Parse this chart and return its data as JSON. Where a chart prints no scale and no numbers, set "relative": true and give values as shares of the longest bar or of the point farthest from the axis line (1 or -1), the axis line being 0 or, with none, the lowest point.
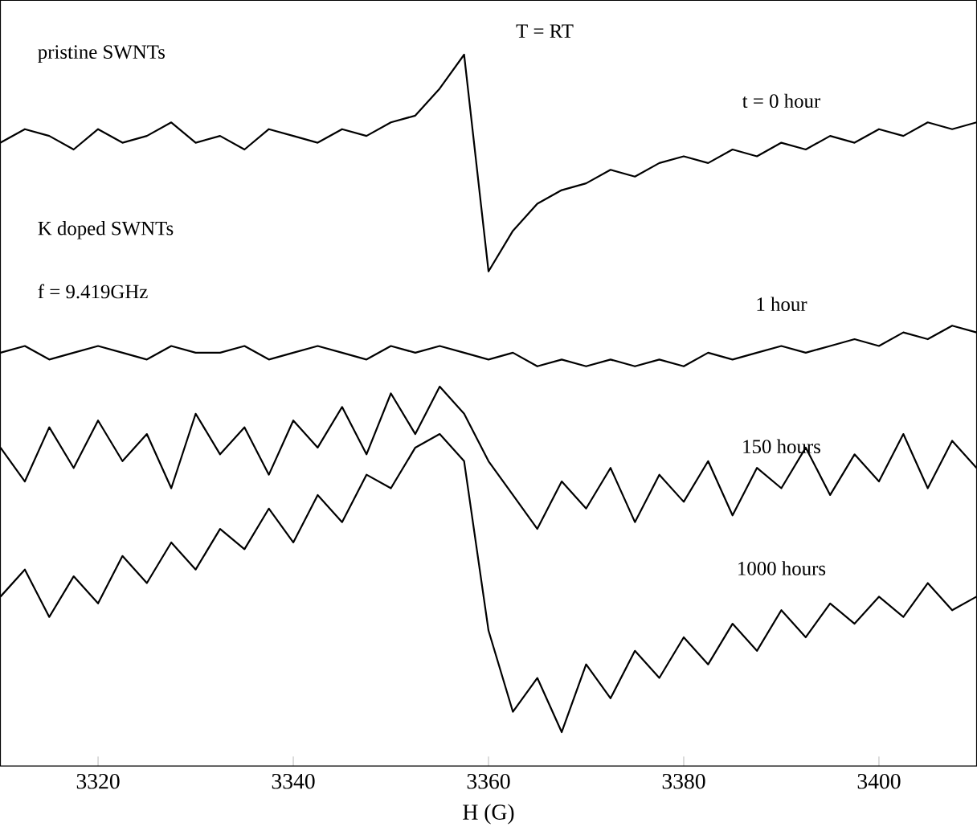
{
  "chart_data": {
    "type": "line",
    "xlabel": "H (G)",
    "relative": true,
    "xlim": [
      3310,
      3410
    ],
    "xticks": [
      3320,
      3340,
      3360,
      3380,
      3400
    ],
    "marker": "none",
    "line_style": "solid",
    "x": [
      3310,
      3312.5,
      3315,
      3317.5,
      3320,
      3322.5,
      3325,
      3327.5,
      3330,
      3332.5,
      3335,
      3337.5,
      3340,
      3342.5,
      3345,
      3347.5,
      3350,
      3352.5,
      3355,
      3357.5,
      3360,
      3362.5,
      3365,
      3367.5,
      3370,
      3372.5,
      3375,
      3377.5,
      3380,
      3382.5,
      3385,
      3387.5,
      3390,
      3392.5,
      3395,
      3397.5,
      3400,
      3402.5,
      3405,
      3407.5,
      3410
    ],
    "series": [
      {
        "name": "t = 0 hour",
        "color": "#000000",
        "values": [
          0.87,
          0.89,
          0.88,
          0.86,
          0.89,
          0.87,
          0.88,
          0.9,
          0.87,
          0.88,
          0.86,
          0.89,
          0.88,
          0.87,
          0.89,
          0.88,
          0.9,
          0.91,
          0.95,
          1,
          0.68,
          0.74,
          0.78,
          0.8,
          0.81,
          0.83,
          0.82,
          0.84,
          0.85,
          0.84,
          0.86,
          0.85,
          0.87,
          0.86,
          0.88,
          0.87,
          0.89,
          0.88,
          0.9,
          0.89,
          0.9
        ]
      },
      {
        "name": "1 hour",
        "color": "#000000",
        "values": [
          0.56,
          0.57,
          0.55,
          0.56,
          0.57,
          0.56,
          0.55,
          0.57,
          0.56,
          0.56,
          0.57,
          0.55,
          0.56,
          0.57,
          0.56,
          0.55,
          0.57,
          0.56,
          0.57,
          0.56,
          0.55,
          0.56,
          0.54,
          0.55,
          0.54,
          0.55,
          0.54,
          0.55,
          0.54,
          0.56,
          0.55,
          0.56,
          0.57,
          0.56,
          0.57,
          0.58,
          0.57,
          0.59,
          0.58,
          0.6,
          0.59
        ]
      },
      {
        "name": "150 hours",
        "color": "#000000",
        "values": [
          0.42,
          0.37,
          0.45,
          0.39,
          0.46,
          0.4,
          0.44,
          0.36,
          0.47,
          0.41,
          0.45,
          0.38,
          0.46,
          0.42,
          0.48,
          0.41,
          0.5,
          0.44,
          0.51,
          0.47,
          0.4,
          0.35,
          0.3,
          0.37,
          0.33,
          0.39,
          0.31,
          0.38,
          0.34,
          0.4,
          0.32,
          0.39,
          0.36,
          0.42,
          0.35,
          0.41,
          0.37,
          0.44,
          0.36,
          0.43,
          0.39
        ]
      },
      {
        "name": "1000 hours",
        "color": "#000000",
        "values": [
          0.2,
          0.24,
          0.17,
          0.23,
          0.19,
          0.26,
          0.22,
          0.28,
          0.24,
          0.3,
          0.27,
          0.33,
          0.28,
          0.35,
          0.31,
          0.38,
          0.36,
          0.42,
          0.44,
          0.4,
          0.15,
          0.03,
          0.08,
          0,
          0.1,
          0.05,
          0.12,
          0.08,
          0.14,
          0.1,
          0.16,
          0.12,
          0.18,
          0.14,
          0.19,
          0.16,
          0.2,
          0.17,
          0.22,
          0.18,
          0.2
        ]
      }
    ],
    "annotations": [
      "pristine SWNTs",
      "T = RT",
      "K doped SWNTs",
      "f = 9.419GHz"
    ]
  }
}
